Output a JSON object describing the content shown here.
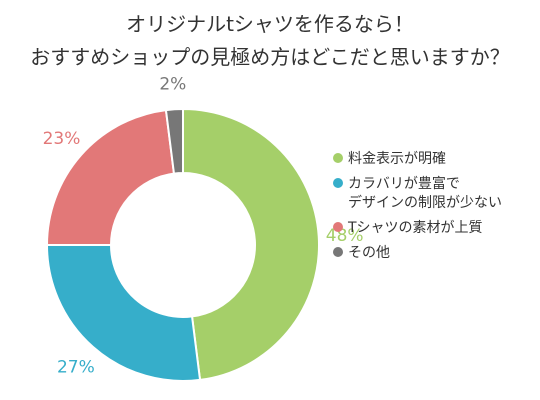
{
  "chart_data": {
    "type": "pie",
    "title": [
      "オリジナルtシャツを作るなら！",
      "おすすめショップの見極め方はどこだと思いますか？"
    ],
    "legend_position": "right",
    "slices": [
      {
        "label": [
          "料金表示が明確"
        ],
        "value": 48,
        "value_label": "48%",
        "color": "#a5cf69"
      },
      {
        "label": [
          "カラバリが豊富で",
          "デザインの制限が少ない"
        ],
        "value": 27,
        "value_label": "27%",
        "color": "#36aeca"
      },
      {
        "label": [
          "Tシャツの素材が上質"
        ],
        "value": 23,
        "value_label": "23%",
        "color": "#e27878"
      },
      {
        "label": [
          "その他"
        ],
        "value": 2,
        "value_label": "2%",
        "color": "#777777"
      }
    ]
  }
}
